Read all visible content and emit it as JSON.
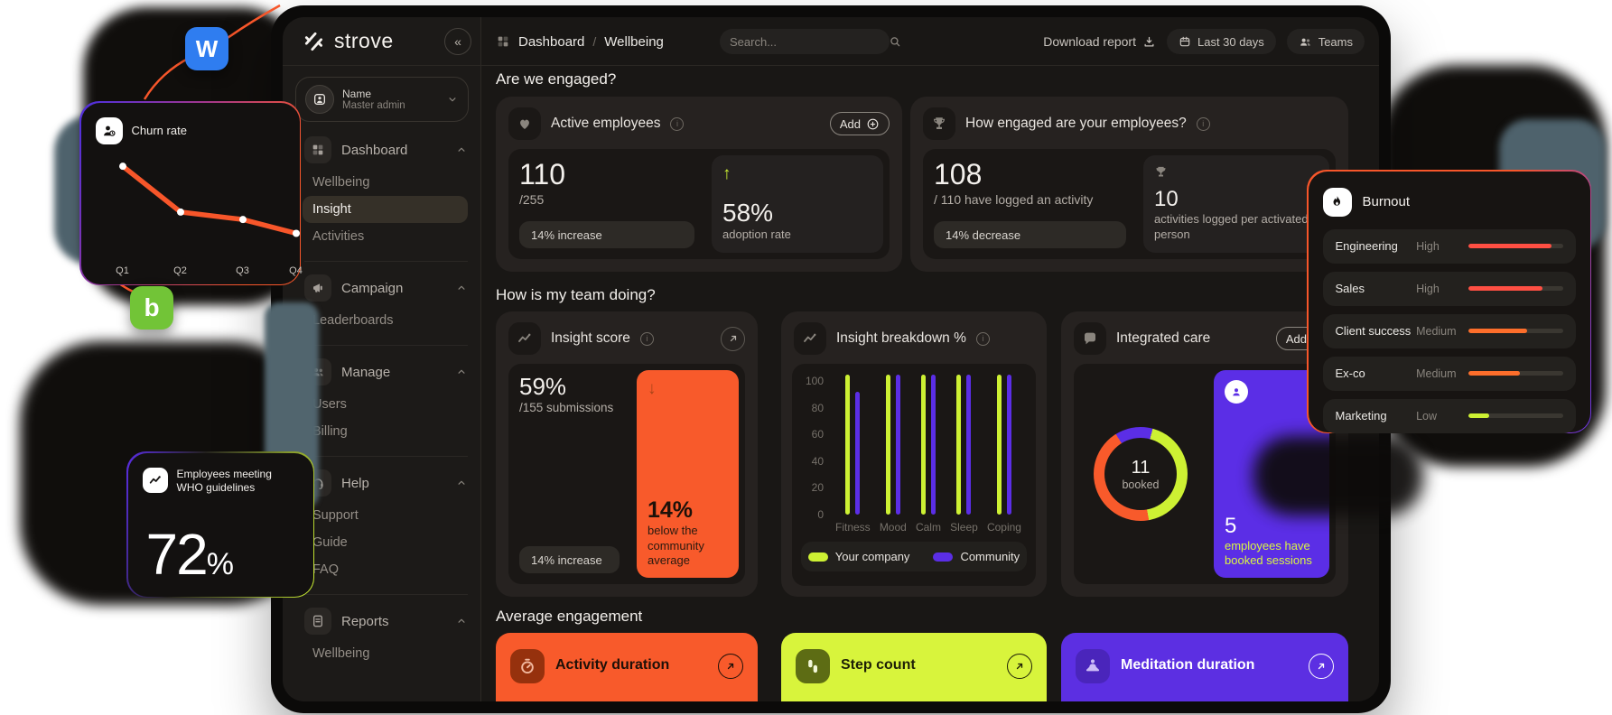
{
  "brand": {
    "name": "strove",
    "collapse_glyph": "«"
  },
  "header": {
    "breadcrumb_section": "Dashboard",
    "breadcrumb_sep": "/",
    "breadcrumb_page": "Wellbeing",
    "search_placeholder": "Search...",
    "download_report_label": "Download report",
    "date_range_label": "Last 30 days",
    "teams_label": "Teams"
  },
  "sidebar": {
    "profile_name": "Name",
    "profile_role": "Master admin",
    "sections": [
      {
        "label": "Dashboard",
        "icon": "grid",
        "items": [
          {
            "label": "Wellbeing",
            "active": false
          },
          {
            "label": "Insight",
            "active": true
          },
          {
            "label": "Activities",
            "active": false
          }
        ]
      },
      {
        "label": "Campaign",
        "icon": "megaphone",
        "items": [
          {
            "label": "Leaderboards",
            "active": false
          }
        ]
      },
      {
        "label": "Manage",
        "icon": "people",
        "items": [
          {
            "label": "Users",
            "active": false
          },
          {
            "label": "Billing",
            "active": false
          }
        ]
      },
      {
        "label": "Help",
        "icon": "headset",
        "items": [
          {
            "label": "Support",
            "active": false
          },
          {
            "label": "Guide",
            "active": false
          },
          {
            "label": "FAQ",
            "active": false
          }
        ]
      },
      {
        "label": "Reports",
        "icon": "document",
        "items": [
          {
            "label": "Wellbeing",
            "active": false
          }
        ]
      }
    ]
  },
  "engaged_section": {
    "heading": "Are we engaged?",
    "active_employees": {
      "title": "Active employees",
      "add_label": "Add",
      "value": "110",
      "denominator": "/255",
      "change_label": "14% increase",
      "adoption_value": "58%",
      "adoption_label": "adoption rate"
    },
    "engagement": {
      "title": "How engaged are your employees?",
      "value": "108",
      "subtitle": "/ 110 have logged an activity",
      "change_label": "14% decrease",
      "per_person_value": "10",
      "per_person_label": "activities logged per activated person"
    }
  },
  "team_section": {
    "heading": "How is my team doing?",
    "insight_score": {
      "title": "Insight score",
      "value": "59%",
      "subtitle": "/155 submissions",
      "change_label": "14% increase",
      "delta_value": "14%",
      "delta_label": "below the community average"
    },
    "insight_breakdown": {
      "title": "Insight breakdown %",
      "legend": [
        {
          "label": "Your company",
          "color": "#cdf133"
        },
        {
          "label": "Community",
          "color": "#5b2ee6"
        }
      ]
    },
    "integrated_care": {
      "title": "Integrated care",
      "add_label": "Add",
      "donut_value": "11",
      "donut_label": "booked",
      "booked_value": "5",
      "booked_label": "employees have booked sessions"
    }
  },
  "engagement_section": {
    "heading": "Average engagement",
    "cards": [
      {
        "title": "Activity duration",
        "bg": "#f85a2b",
        "icon_bg": "#96310d",
        "icon_fg": "#f2b9a0",
        "text": "#1d1008",
        "icon": "timer"
      },
      {
        "title": "Step count",
        "bg": "#d8f43c",
        "icon_bg": "#5d6c14",
        "icon_fg": "#f2f7d8",
        "text": "#1d1f06",
        "icon": "steps"
      },
      {
        "title": "Meditation duration",
        "bg": "#5c2fe2",
        "icon_bg": "#4a25bb",
        "icon_fg": "#cdbcf7",
        "text": "#ffffff",
        "icon": "meditation"
      }
    ]
  },
  "floating": {
    "churn": {
      "title": "Churn rate"
    },
    "who": {
      "label": "Employees meeting WHO guidelines",
      "value": "72",
      "unit": "%"
    },
    "burnout": {
      "title": "Burnout",
      "rows": [
        {
          "team": "Engineering",
          "level": "High",
          "pct": 88,
          "color": "#ff4f43"
        },
        {
          "team": "Sales",
          "level": "High",
          "pct": 78,
          "color": "#ff4f43"
        },
        {
          "team": "Client success",
          "level": "Medium",
          "pct": 62,
          "color": "#fd6e2b"
        },
        {
          "team": "Ex-co",
          "level": "Medium",
          "pct": 55,
          "color": "#fd6e2b"
        },
        {
          "team": "Marketing",
          "level": "Low",
          "pct": 22,
          "color": "#cdf133"
        }
      ]
    },
    "app_icons": [
      {
        "letter": "W",
        "color": "#2f7df0"
      },
      {
        "letter": "b",
        "color": "#72c437"
      }
    ]
  },
  "chart_data": [
    {
      "type": "bar",
      "title": "Insight breakdown %",
      "categories": [
        "Fitness",
        "Mood",
        "Calm",
        "Sleep",
        "Coping"
      ],
      "series": [
        {
          "name": "Your company",
          "color": "#cdf133",
          "values": [
            100,
            100,
            100,
            100,
            100
          ]
        },
        {
          "name": "Community",
          "color": "#5b2ee6",
          "values": [
            88,
            100,
            100,
            100,
            100
          ]
        }
      ],
      "ylim": [
        0,
        100
      ],
      "yticks": [
        100,
        80,
        60,
        40,
        20,
        0
      ],
      "grid": false,
      "legend_position": "bottom"
    },
    {
      "type": "line",
      "title": "Churn rate",
      "categories": [
        "Q1",
        "Q2",
        "Q3",
        "Q4"
      ],
      "values": [
        88,
        45,
        38,
        25
      ],
      "color": "#f7562a"
    },
    {
      "type": "pie",
      "title": "Integrated care bookings",
      "center_label": "11 booked",
      "slices": [
        {
          "color": "#cdf133",
          "pct": 43
        },
        {
          "color": "#f85a2b",
          "pct": 44
        },
        {
          "color": "#5b2ee6",
          "pct": 13
        }
      ]
    },
    {
      "type": "bar",
      "title": "Burnout by team",
      "categories": [
        "Engineering",
        "Sales",
        "Client success",
        "Ex-co",
        "Marketing"
      ],
      "values": [
        88,
        78,
        62,
        55,
        22
      ],
      "labels": [
        "High",
        "High",
        "Medium",
        "Medium",
        "Low"
      ]
    }
  ]
}
